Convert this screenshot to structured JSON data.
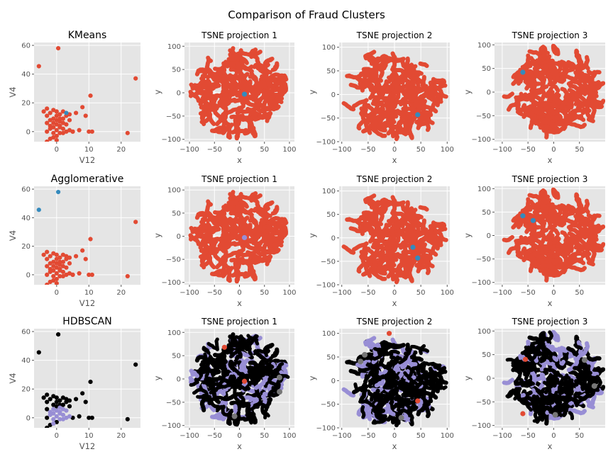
{
  "title": "Comparison of Fraud Clusters",
  "colors": {
    "panel_bg": "#e5e5e5",
    "grid": "#ffffff",
    "tick": "#555555",
    "cluster_main": "#e24a33",
    "cluster_alt": "#348abd",
    "noise": "#000000",
    "hdbscan_main": "#988ed5",
    "hdbscan_gray": "#777777",
    "hdbscan_pink": "#fbc15e"
  },
  "chart_data": [
    {
      "type": "scatter",
      "row": "KMeans",
      "title": "KMeans",
      "xlabel": "V12",
      "ylabel": "V4",
      "xlim": [
        -7,
        26
      ],
      "ylim": [
        -7,
        62
      ],
      "xticks": [
        0,
        10,
        20
      ],
      "yticks": [
        0,
        20,
        40,
        60
      ],
      "series": [
        {
          "color": "#e24a33",
          "points": [
            [
              -5.5,
              45.5
            ],
            [
              0.5,
              58
            ],
            [
              24.5,
              37
            ],
            [
              10.5,
              25
            ],
            [
              22,
              -1
            ],
            [
              10,
              0
            ],
            [
              11,
              0
            ],
            [
              8,
              17
            ],
            [
              9,
              11
            ],
            [
              6,
              13
            ],
            [
              5,
              0
            ],
            [
              7,
              1
            ],
            [
              -3,
              -7
            ],
            [
              -2,
              -5
            ],
            [
              0,
              -3
            ],
            [
              -1,
              -1
            ],
            [
              -3,
              0
            ],
            [
              -2,
              2
            ],
            [
              -1,
              3
            ],
            [
              0,
              5
            ],
            [
              1,
              7
            ],
            [
              -2,
              8
            ],
            [
              -3,
              11
            ],
            [
              -2,
              13
            ],
            [
              -1,
              9
            ],
            [
              0,
              11
            ],
            [
              1,
              12
            ],
            [
              2,
              14
            ],
            [
              3,
              11
            ],
            [
              2,
              9
            ],
            [
              1,
              4
            ],
            [
              2,
              2
            ],
            [
              3,
              0
            ],
            [
              4,
              1
            ],
            [
              0,
              1
            ],
            [
              1,
              -1
            ],
            [
              -1,
              6
            ],
            [
              -2,
              4
            ],
            [
              0,
              8
            ],
            [
              1,
              9
            ],
            [
              4,
              8
            ],
            [
              3,
              5
            ],
            [
              2,
              6
            ],
            [
              -1,
              -4
            ],
            [
              0,
              -6
            ],
            [
              1,
              3
            ],
            [
              2,
              -1
            ],
            [
              -3,
              6
            ],
            [
              -4,
              14
            ],
            [
              -3,
              16
            ],
            [
              -1,
              15
            ],
            [
              0,
              14
            ],
            [
              4,
              12
            ],
            [
              5,
              0
            ]
          ]
        },
        {
          "color": "#348abd",
          "points": [
            [
              3,
              13
            ]
          ]
        }
      ]
    },
    {
      "type": "scatter",
      "row": "KMeans",
      "title": "TSNE projection 1",
      "xlabel": "x",
      "ylabel": "y",
      "xlim": [
        -110,
        110
      ],
      "ylim": [
        -105,
        108
      ],
      "xticks": [
        -100,
        -50,
        0,
        50,
        100
      ],
      "yticks": [
        -100,
        -50,
        0,
        50,
        100
      ],
      "highlight": {
        "color": "#348abd",
        "points": [
          [
            10,
            -3
          ]
        ]
      }
    },
    {
      "type": "scatter",
      "row": "KMeans",
      "title": "TSNE projection 2",
      "xlabel": "x",
      "ylabel": "y",
      "xlim": [
        -105,
        105
      ],
      "ylim": [
        -100,
        110
      ],
      "xticks": [
        -100,
        -50,
        0,
        50,
        100
      ],
      "yticks": [
        -100,
        -50,
        0,
        50,
        100
      ],
      "highlight": {
        "color": "#348abd",
        "points": [
          [
            44,
            -43
          ]
        ]
      }
    },
    {
      "type": "scatter",
      "row": "KMeans",
      "title": "TSNE projection 3",
      "xlabel": "x",
      "ylabel": "y",
      "xlim": [
        -115,
        100
      ],
      "ylim": [
        -105,
        105
      ],
      "xticks": [
        -100,
        -50,
        0,
        50
      ],
      "yticks": [
        -100,
        -50,
        0,
        50,
        100
      ],
      "highlight": {
        "color": "#348abd",
        "points": [
          [
            -60,
            42
          ]
        ]
      }
    },
    {
      "type": "scatter",
      "row": "Agglomerative",
      "title": "Agglomerative",
      "xlabel": "V12",
      "ylabel": "V4",
      "xlim": [
        -7,
        26
      ],
      "ylim": [
        -7,
        62
      ],
      "xticks": [
        0,
        10,
        20
      ],
      "yticks": [
        0,
        20,
        40,
        60
      ],
      "series": [
        {
          "color": "#e24a33",
          "points": [
            [
              24.5,
              37
            ],
            [
              10.5,
              25
            ],
            [
              22,
              -1
            ],
            [
              10,
              0
            ],
            [
              11,
              0
            ],
            [
              8,
              17
            ],
            [
              9,
              11
            ],
            [
              6,
              13
            ],
            [
              5,
              0
            ],
            [
              7,
              1
            ],
            [
              -3,
              -7
            ],
            [
              -2,
              -5
            ],
            [
              0,
              -3
            ],
            [
              -1,
              -1
            ],
            [
              -3,
              0
            ],
            [
              -2,
              2
            ],
            [
              -1,
              3
            ],
            [
              0,
              5
            ],
            [
              1,
              7
            ],
            [
              -2,
              8
            ],
            [
              -3,
              11
            ],
            [
              -2,
              13
            ],
            [
              -1,
              9
            ],
            [
              0,
              11
            ],
            [
              1,
              12
            ],
            [
              2,
              14
            ],
            [
              3,
              11
            ],
            [
              2,
              9
            ],
            [
              1,
              4
            ],
            [
              2,
              2
            ],
            [
              3,
              0
            ],
            [
              4,
              1
            ],
            [
              0,
              1
            ],
            [
              1,
              -1
            ],
            [
              -1,
              6
            ],
            [
              -2,
              4
            ],
            [
              0,
              8
            ],
            [
              1,
              9
            ],
            [
              4,
              8
            ],
            [
              3,
              5
            ],
            [
              2,
              6
            ],
            [
              -1,
              -4
            ],
            [
              0,
              -6
            ],
            [
              1,
              3
            ],
            [
              2,
              -1
            ],
            [
              -3,
              6
            ],
            [
              -4,
              14
            ],
            [
              -3,
              16
            ],
            [
              -1,
              15
            ],
            [
              0,
              14
            ],
            [
              4,
              12
            ],
            [
              3,
              13
            ],
            [
              5,
              0
            ]
          ]
        },
        {
          "color": "#348abd",
          "points": [
            [
              -5.5,
              45.5
            ],
            [
              0.5,
              58
            ]
          ]
        }
      ]
    },
    {
      "type": "scatter",
      "row": "Agglomerative",
      "title": "TSNE projection 1",
      "xlabel": "x",
      "ylabel": "y",
      "xlim": [
        -110,
        110
      ],
      "ylim": [
        -105,
        108
      ],
      "xticks": [
        -100,
        -50,
        0,
        50,
        100
      ],
      "yticks": [
        -100,
        -50,
        0,
        50,
        100
      ],
      "highlight": {
        "color": "#988ed5",
        "points": [
          [
            10,
            -3
          ]
        ]
      }
    },
    {
      "type": "scatter",
      "row": "Agglomerative",
      "title": "TSNE projection 2",
      "xlabel": "x",
      "ylabel": "y",
      "xlim": [
        -105,
        105
      ],
      "ylim": [
        -100,
        110
      ],
      "xticks": [
        -100,
        -50,
        0,
        50,
        100
      ],
      "yticks": [
        -100,
        -50,
        0,
        50,
        100
      ],
      "highlight": {
        "color": "#348abd",
        "points": [
          [
            35,
            -20
          ],
          [
            44,
            -43
          ]
        ]
      }
    },
    {
      "type": "scatter",
      "row": "Agglomerative",
      "title": "TSNE projection 3",
      "xlabel": "x",
      "ylabel": "y",
      "xlim": [
        -115,
        100
      ],
      "ylim": [
        -105,
        105
      ],
      "xticks": [
        -100,
        -50,
        0,
        50
      ],
      "yticks": [
        -100,
        -50,
        0,
        50,
        100
      ],
      "highlight": {
        "color": "#348abd",
        "points": [
          [
            -40,
            32
          ],
          [
            -60,
            42
          ]
        ]
      }
    },
    {
      "type": "scatter",
      "row": "HDBSCAN",
      "title": "HDBSCAN",
      "xlabel": "V12",
      "ylabel": "V4",
      "xlim": [
        -7,
        26
      ],
      "ylim": [
        -7,
        62
      ],
      "xticks": [
        0,
        10,
        20
      ],
      "yticks": [
        0,
        20,
        40,
        60
      ],
      "series": [
        {
          "color": "#000000",
          "points": [
            [
              -5.5,
              45.5
            ],
            [
              0.5,
              58
            ],
            [
              24.5,
              37
            ],
            [
              10.5,
              25
            ],
            [
              22,
              -1
            ],
            [
              10,
              0
            ],
            [
              11,
              0
            ],
            [
              8,
              17
            ],
            [
              9,
              11
            ],
            [
              6,
              13
            ],
            [
              5,
              0
            ],
            [
              7,
              1
            ],
            [
              -3,
              -7
            ],
            [
              -2,
              -5
            ],
            [
              0,
              -3
            ],
            [
              -3,
              0
            ],
            [
              -3,
              11
            ],
            [
              -2,
              13
            ],
            [
              -1,
              9
            ],
            [
              0,
              11
            ],
            [
              1,
              12
            ],
            [
              2,
              14
            ],
            [
              3,
              11
            ],
            [
              2,
              9
            ],
            [
              -3,
              6
            ],
            [
              -4,
              14
            ],
            [
              -3,
              16
            ],
            [
              -1,
              15
            ],
            [
              0,
              14
            ],
            [
              4,
              12
            ],
            [
              3,
              13
            ],
            [
              4,
              8
            ],
            [
              1,
              9
            ],
            [
              0,
              8
            ]
          ]
        },
        {
          "color": "#988ed5",
          "points": [
            [
              -1,
              -1
            ],
            [
              -2,
              2
            ],
            [
              -1,
              3
            ],
            [
              0,
              5
            ],
            [
              1,
              7
            ],
            [
              1,
              4
            ],
            [
              2,
              2
            ],
            [
              3,
              0
            ],
            [
              4,
              1
            ],
            [
              0,
              1
            ],
            [
              1,
              -1
            ],
            [
              -1,
              6
            ],
            [
              -2,
              4
            ],
            [
              3,
              5
            ],
            [
              2,
              6
            ],
            [
              -1,
              -4
            ],
            [
              1,
              3
            ],
            [
              2,
              -1
            ]
          ]
        }
      ]
    },
    {
      "type": "scatter",
      "row": "HDBSCAN",
      "title": "TSNE projection 1",
      "xlabel": "x",
      "ylabel": "y",
      "xlim": [
        -110,
        110
      ],
      "ylim": [
        -105,
        108
      ],
      "xticks": [
        -100,
        -50,
        0,
        50,
        100
      ],
      "yticks": [
        -100,
        -50,
        0,
        50,
        100
      ],
      "highlight": {
        "color": "#e24a33",
        "points": [
          [
            10,
            -5
          ],
          [
            -30,
            68
          ]
        ]
      }
    },
    {
      "type": "scatter",
      "row": "HDBSCAN",
      "title": "TSNE projection 2",
      "xlabel": "x",
      "ylabel": "y",
      "xlim": [
        -105,
        105
      ],
      "ylim": [
        -100,
        110
      ],
      "xticks": [
        -100,
        -50,
        0,
        50,
        100
      ],
      "yticks": [
        -100,
        -50,
        0,
        50,
        100
      ],
      "highlight": {
        "color": "#e24a33",
        "points": [
          [
            44,
            -43
          ],
          [
            -10,
            100
          ]
        ]
      }
    },
    {
      "type": "scatter",
      "row": "HDBSCAN",
      "title": "TSNE projection 3",
      "xlabel": "x",
      "ylabel": "y",
      "xlim": [
        -115,
        100
      ],
      "ylim": [
        -105,
        105
      ],
      "xticks": [
        -100,
        -50,
        0,
        50
      ],
      "yticks": [
        -100,
        -50,
        0,
        50,
        100
      ],
      "highlight": {
        "color": "#e24a33",
        "points": [
          [
            -55,
            40
          ],
          [
            -60,
            -75
          ]
        ]
      }
    }
  ]
}
